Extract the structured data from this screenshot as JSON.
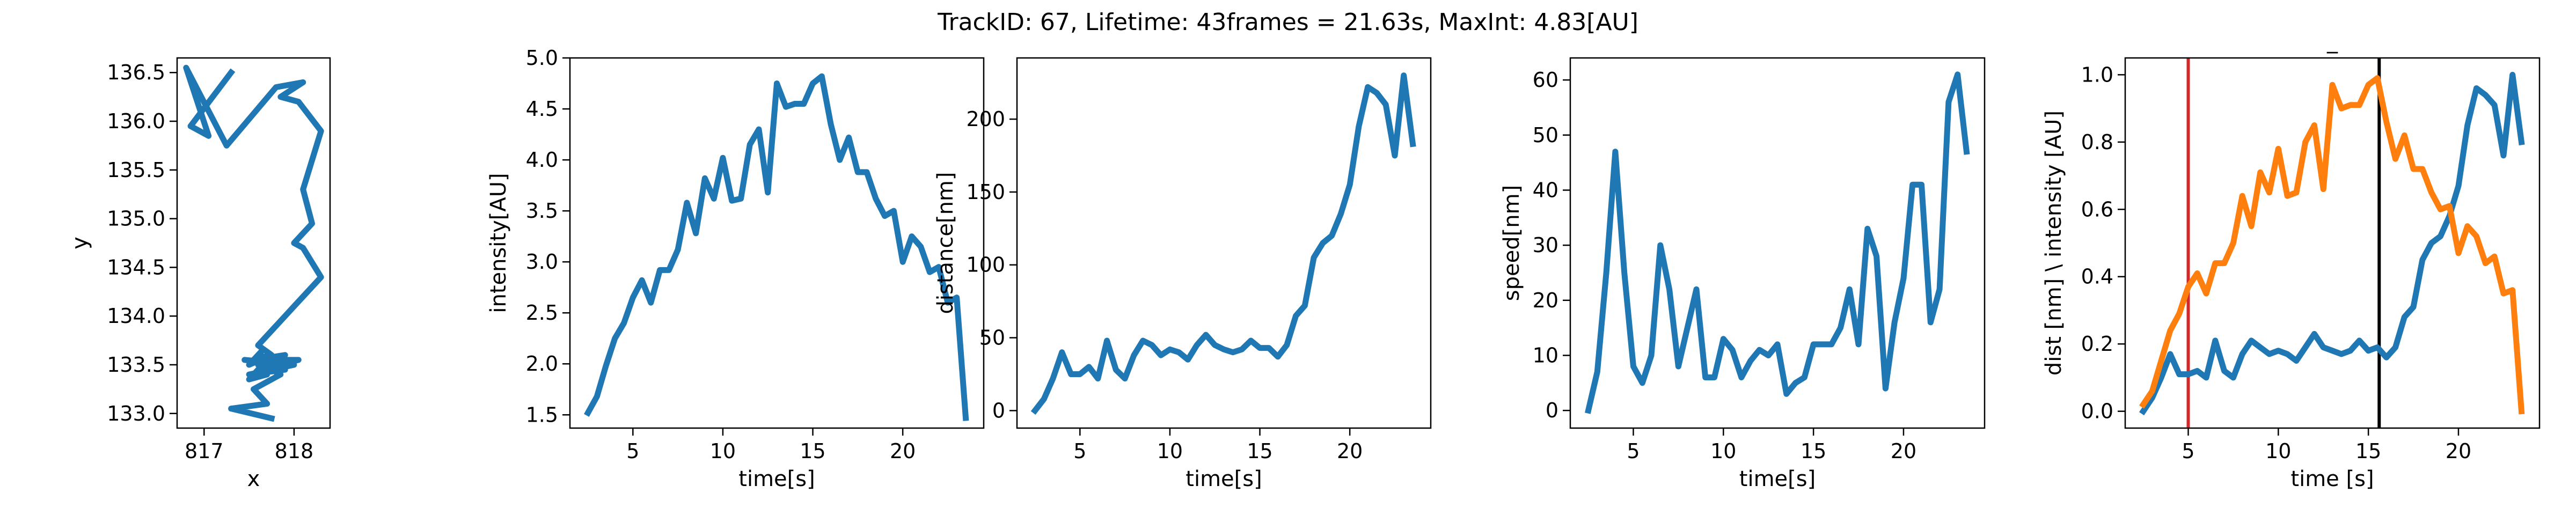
{
  "figure": {
    "title": "TrackID: 67, Lifetime: 43frames = 21.63s, MaxInt: 4.83[AU]"
  },
  "chart_data": [
    {
      "type": "line",
      "xlabel": "x",
      "ylabel": "y",
      "xlim": [
        816.7,
        818.4
      ],
      "ylim": [
        132.85,
        136.65
      ],
      "xticks": [
        817,
        818
      ],
      "yticks": [
        133.0,
        133.5,
        134.0,
        134.5,
        135.0,
        135.5,
        136.0,
        136.5
      ],
      "xtick_labels": [
        "817",
        "818"
      ],
      "ytick_labels": [
        "133.0",
        "133.5",
        "134.0",
        "134.5",
        "135.0",
        "135.5",
        "136.0",
        "136.5"
      ],
      "grid": false,
      "series": [
        {
          "color": "#1f77b4",
          "x": [
            817.3,
            816.85,
            817.05,
            816.8,
            817.25,
            817.8,
            818.1,
            817.85,
            818.05,
            818.3,
            818.1,
            818.2,
            818.0,
            818.1,
            818.3,
            818.0,
            817.9,
            817.6,
            817.75,
            817.5,
            817.65,
            817.55,
            817.9,
            817.6,
            818.0,
            817.5,
            817.9,
            817.7,
            818.05,
            817.6,
            817.95,
            817.45,
            818.0,
            817.6,
            817.7,
            817.5,
            817.65,
            817.85,
            817.55,
            817.7,
            817.3,
            817.75
          ],
          "y": [
            136.5,
            135.95,
            135.85,
            136.55,
            135.75,
            136.35,
            136.4,
            136.25,
            136.2,
            135.9,
            135.3,
            134.95,
            134.75,
            134.7,
            134.4,
            134.1,
            134.0,
            133.7,
            133.6,
            133.5,
            133.65,
            133.55,
            133.6,
            133.5,
            133.5,
            133.4,
            133.45,
            133.55,
            133.55,
            133.45,
            133.5,
            133.55,
            133.5,
            133.6,
            133.4,
            133.35,
            133.5,
            133.4,
            133.25,
            133.1,
            133.05,
            132.95
          ]
        }
      ]
    },
    {
      "type": "line",
      "xlabel": "time[s]",
      "ylabel": "intensity[AU]",
      "xlim": [
        1.5,
        24.5
      ],
      "ylim": [
        1.37,
        5.0
      ],
      "xticks": [
        5,
        10,
        15,
        20
      ],
      "yticks": [
        1.5,
        2.0,
        2.5,
        3.0,
        3.5,
        4.0,
        4.5,
        5.0
      ],
      "xtick_labels": [
        "5",
        "10",
        "15",
        "20"
      ],
      "ytick_labels": [
        "1.5",
        "2.0",
        "2.5",
        "3.0",
        "3.5",
        "4.0",
        "4.5",
        "5.0"
      ],
      "grid": false,
      "series": [
        {
          "color": "#1f77b4",
          "x": [
            2.5,
            3.0,
            3.5,
            4.0,
            4.5,
            5.0,
            5.5,
            6.0,
            6.5,
            7.0,
            7.5,
            8.0,
            8.5,
            9.0,
            9.5,
            10.0,
            10.5,
            11.0,
            11.5,
            12.0,
            12.5,
            13.0,
            13.5,
            14.0,
            14.5,
            15.0,
            15.5,
            16.0,
            16.5,
            17.0,
            17.5,
            18.0,
            18.5,
            19.0,
            19.5,
            20.0,
            20.5,
            21.0,
            21.5,
            22.0,
            22.5,
            23.0,
            23.5
          ],
          "y": [
            1.52,
            1.68,
            1.98,
            2.25,
            2.4,
            2.65,
            2.82,
            2.6,
            2.92,
            2.92,
            3.12,
            3.58,
            3.28,
            3.82,
            3.62,
            4.02,
            3.6,
            3.62,
            4.15,
            4.3,
            3.68,
            4.75,
            4.52,
            4.55,
            4.55,
            4.75,
            4.82,
            4.35,
            4.0,
            4.22,
            3.88,
            3.88,
            3.62,
            3.45,
            3.5,
            3.0,
            3.25,
            3.15,
            2.9,
            2.95,
            2.6,
            2.65,
            1.47
          ]
        }
      ]
    },
    {
      "type": "line",
      "xlabel": "time[s]",
      "ylabel": "distance[nm]",
      "xlim": [
        1.5,
        24.5
      ],
      "ylim": [
        -12,
        242
      ],
      "xticks": [
        5,
        10,
        15,
        20
      ],
      "yticks": [
        0,
        50,
        100,
        150,
        200
      ],
      "xtick_labels": [
        "5",
        "10",
        "15",
        "20"
      ],
      "ytick_labels": [
        "0",
        "50",
        "100",
        "150",
        "200"
      ],
      "grid": false,
      "series": [
        {
          "color": "#1f77b4",
          "x": [
            2.5,
            3.0,
            3.5,
            4.0,
            4.5,
            5.0,
            5.5,
            6.0,
            6.5,
            7.0,
            7.5,
            8.0,
            8.5,
            9.0,
            9.5,
            10.0,
            10.5,
            11.0,
            11.5,
            12.0,
            12.5,
            13.0,
            13.5,
            14.0,
            14.5,
            15.0,
            15.5,
            16.0,
            16.5,
            17.0,
            17.5,
            18.0,
            18.5,
            19.0,
            19.5,
            20.0,
            20.5,
            21.0,
            21.5,
            22.0,
            22.5,
            23.0,
            23.5
          ],
          "y": [
            0,
            8,
            22,
            40,
            25,
            25,
            30,
            22,
            48,
            28,
            22,
            38,
            48,
            45,
            38,
            42,
            40,
            35,
            45,
            52,
            45,
            42,
            40,
            42,
            48,
            43,
            43,
            37,
            45,
            65,
            72,
            105,
            115,
            120,
            135,
            155,
            195,
            222,
            218,
            210,
            175,
            230,
            183
          ]
        }
      ]
    },
    {
      "type": "line",
      "xlabel": "time[s]",
      "ylabel": "speed[nm]",
      "xlim": [
        1.5,
        24.5
      ],
      "ylim": [
        -3.2,
        64
      ],
      "xticks": [
        5,
        10,
        15,
        20
      ],
      "yticks": [
        0,
        10,
        20,
        30,
        40,
        50,
        60
      ],
      "xtick_labels": [
        "5",
        "10",
        "15",
        "20"
      ],
      "ytick_labels": [
        "0",
        "10",
        "20",
        "30",
        "40",
        "50",
        "60"
      ],
      "grid": false,
      "series": [
        {
          "color": "#1f77b4",
          "x": [
            2.5,
            3.0,
            3.5,
            4.0,
            4.5,
            5.0,
            5.5,
            6.0,
            6.5,
            7.0,
            7.5,
            8.0,
            8.5,
            9.0,
            9.5,
            10.0,
            10.5,
            11.0,
            11.5,
            12.0,
            12.5,
            13.0,
            13.5,
            14.0,
            14.5,
            15.0,
            15.5,
            16.0,
            16.5,
            17.0,
            17.5,
            18.0,
            18.5,
            19.0,
            19.5,
            20.0,
            20.5,
            21.0,
            21.5,
            22.0,
            22.5,
            23.0,
            23.5
          ],
          "y": [
            0,
            7,
            25,
            47,
            25,
            8,
            5,
            10,
            30,
            22,
            8,
            15,
            22,
            6,
            6,
            13,
            11,
            6,
            9,
            11,
            10,
            12,
            3,
            5,
            6,
            12,
            12,
            12,
            15,
            22,
            12,
            33,
            28,
            4,
            16,
            24,
            41,
            41,
            16,
            22,
            56,
            61,
            47
          ]
        }
      ]
    },
    {
      "type": "line",
      "title": "_",
      "xlabel": "time [s]",
      "ylabel": "dist [nm] \\ intensity [AU]",
      "xlim": [
        1.5,
        24.5
      ],
      "ylim": [
        -0.05,
        1.05
      ],
      "xticks": [
        5,
        10,
        15,
        20
      ],
      "yticks": [
        0.0,
        0.2,
        0.4,
        0.6,
        0.8,
        1.0
      ],
      "xtick_labels": [
        "5",
        "10",
        "15",
        "20"
      ],
      "ytick_labels": [
        "0.0",
        "0.2",
        "0.4",
        "0.6",
        "0.8",
        "1.0"
      ],
      "grid": false,
      "vlines": [
        {
          "x": 5.0,
          "color": "#d62728"
        },
        {
          "x": 15.6,
          "color": "#000000"
        }
      ],
      "series": [
        {
          "color": "#1f77b4",
          "x": [
            2.5,
            3.0,
            3.5,
            4.0,
            4.5,
            5.0,
            5.5,
            6.0,
            6.5,
            7.0,
            7.5,
            8.0,
            8.5,
            9.0,
            9.5,
            10.0,
            10.5,
            11.0,
            11.5,
            12.0,
            12.5,
            13.0,
            13.5,
            14.0,
            14.5,
            15.0,
            15.5,
            16.0,
            16.5,
            17.0,
            17.5,
            18.0,
            18.5,
            19.0,
            19.5,
            20.0,
            20.5,
            21.0,
            21.5,
            22.0,
            22.5,
            23.0,
            23.5
          ],
          "y": [
            0.0,
            0.04,
            0.1,
            0.17,
            0.11,
            0.11,
            0.12,
            0.1,
            0.21,
            0.12,
            0.1,
            0.17,
            0.21,
            0.19,
            0.17,
            0.18,
            0.17,
            0.15,
            0.19,
            0.23,
            0.19,
            0.18,
            0.17,
            0.18,
            0.21,
            0.18,
            0.19,
            0.16,
            0.19,
            0.28,
            0.31,
            0.45,
            0.5,
            0.52,
            0.58,
            0.67,
            0.85,
            0.96,
            0.94,
            0.91,
            0.76,
            1.0,
            0.8
          ]
        },
        {
          "color": "#ff7f0e",
          "x": [
            2.5,
            3.0,
            3.5,
            4.0,
            4.5,
            5.0,
            5.5,
            6.0,
            6.5,
            7.0,
            7.5,
            8.0,
            8.5,
            9.0,
            9.5,
            10.0,
            10.5,
            11.0,
            11.5,
            12.0,
            12.5,
            13.0,
            13.5,
            14.0,
            14.5,
            15.0,
            15.5,
            16.0,
            16.5,
            17.0,
            17.5,
            18.0,
            18.5,
            19.0,
            19.5,
            20.0,
            20.5,
            21.0,
            21.5,
            22.0,
            22.5,
            23.0,
            23.5
          ],
          "y": [
            0.02,
            0.06,
            0.15,
            0.24,
            0.29,
            0.37,
            0.41,
            0.35,
            0.44,
            0.44,
            0.5,
            0.64,
            0.55,
            0.71,
            0.65,
            0.78,
            0.64,
            0.65,
            0.8,
            0.85,
            0.66,
            0.97,
            0.9,
            0.91,
            0.91,
            0.97,
            0.99,
            0.86,
            0.75,
            0.82,
            0.72,
            0.72,
            0.65,
            0.6,
            0.61,
            0.47,
            0.55,
            0.52,
            0.44,
            0.46,
            0.35,
            0.36,
            0.0
          ]
        }
      ]
    }
  ]
}
